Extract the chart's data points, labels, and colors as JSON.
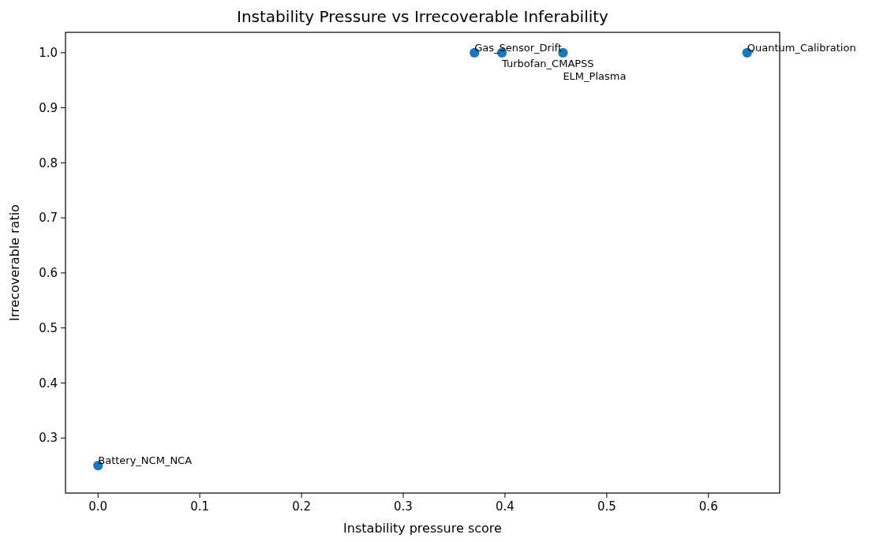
{
  "chart_data": {
    "type": "scatter",
    "title": "Instability Pressure vs Irrecoverable Inferability",
    "xlabel": "Instability pressure score",
    "ylabel": "Irrecoverable ratio",
    "x": [
      0.0,
      0.37,
      0.397,
      0.457,
      0.638
    ],
    "values": [
      0.25,
      1.0,
      1.0,
      1.0,
      1.0
    ],
    "color": "#1f77b4",
    "marker": "circle",
    "xlim": [
      -0.032,
      0.67
    ],
    "ylim": [
      0.2,
      1.037
    ],
    "xticks": [
      {
        "value": 0,
        "label": "0.0"
      },
      0.1,
      0.2,
      0.3,
      0.4,
      0.5,
      0.6
    ],
    "yticks": [
      0.3,
      0.4,
      0.5,
      0.6,
      0.7,
      0.8,
      0.9,
      {
        "value": 1,
        "label": "1.0"
      }
    ],
    "grid": false,
    "annotations": [
      {
        "text": "Battery_NCM_NCA",
        "x": 0.0,
        "y": 0.25
      },
      {
        "text": "Gas_Sensor_Drift",
        "x": 0.37,
        "y": 1.0
      },
      {
        "text": "Turbofan_CMAPSS",
        "x": 0.397,
        "y": 1.0
      },
      {
        "text": "ELM_Plasma",
        "x": 0.457,
        "y": 1.0
      },
      {
        "text": "Quantum_Calibration",
        "x": 0.638,
        "y": 1.0
      }
    ]
  }
}
